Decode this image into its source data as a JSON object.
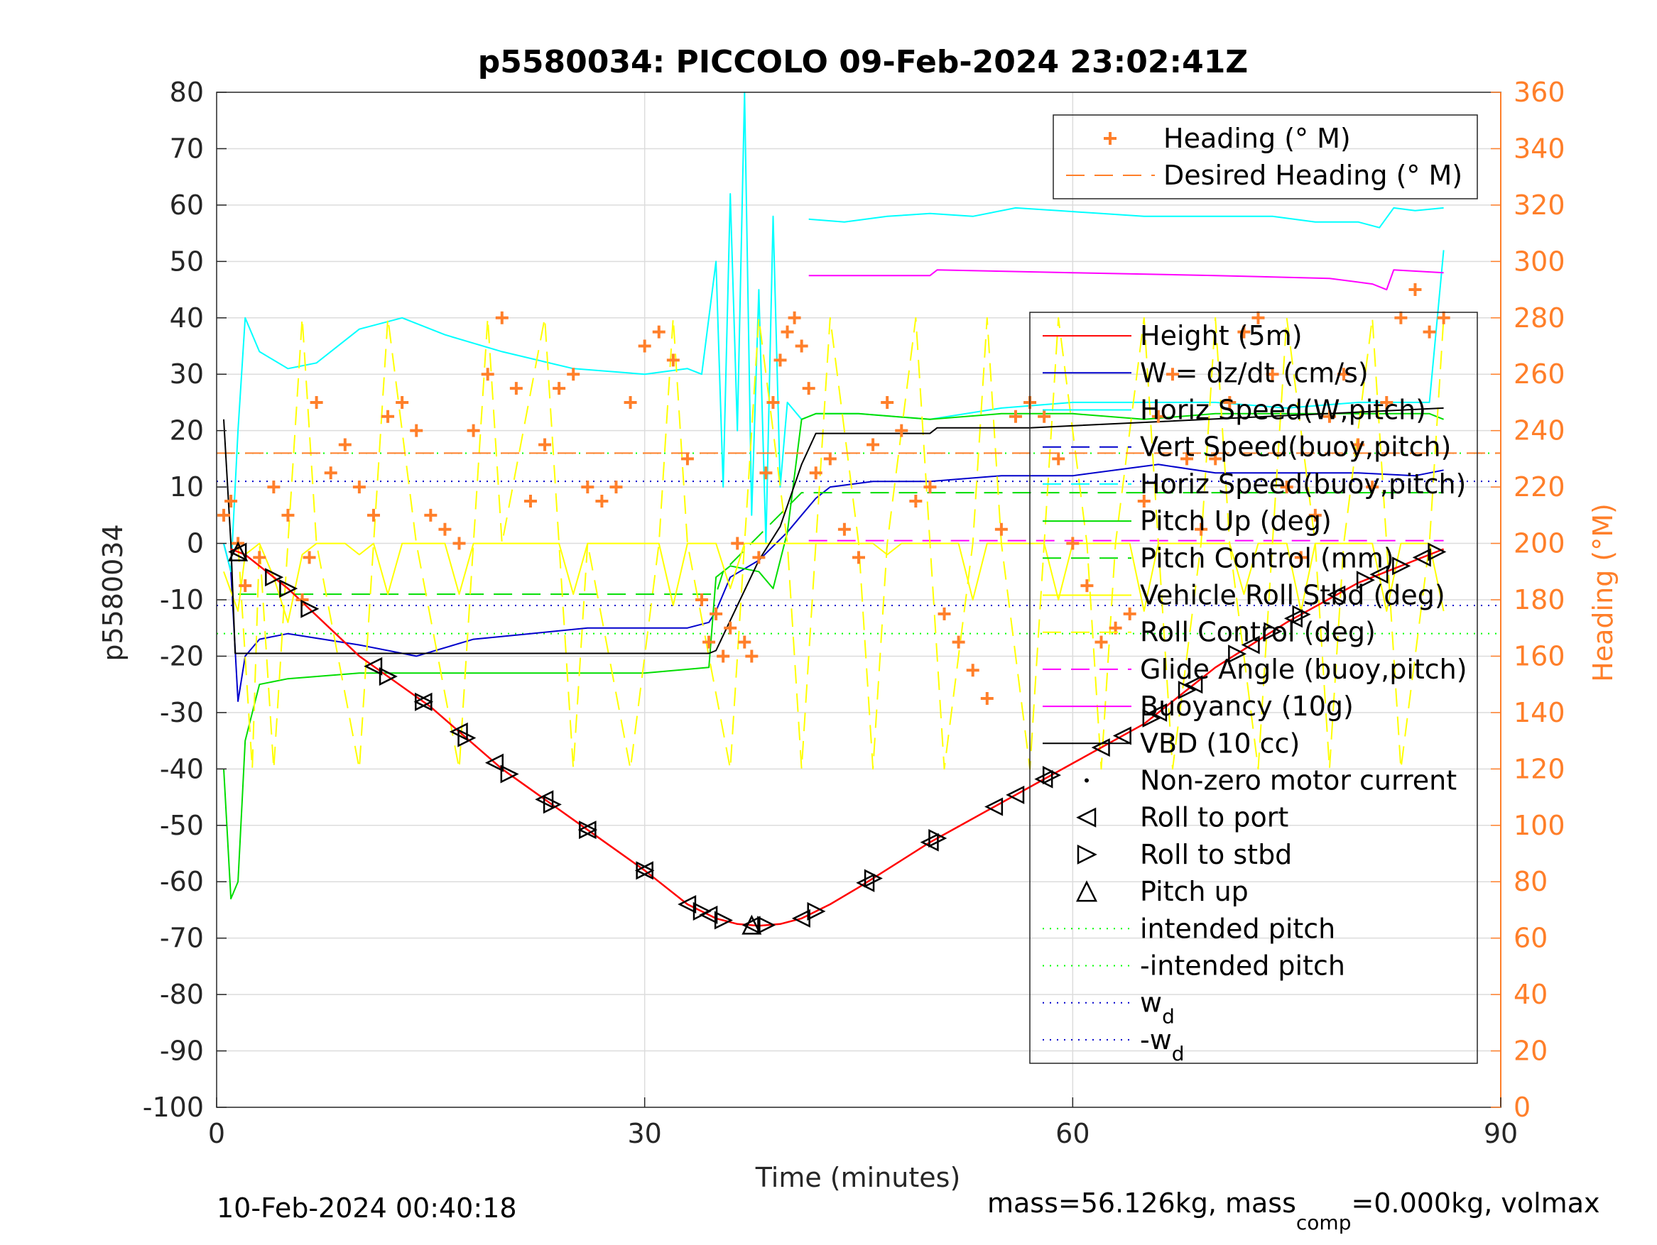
{
  "chart_data": {
    "type": "line",
    "title": "p5580034: PICCOLO 09-Feb-2024 23:02:41Z",
    "xlabel": "Time (minutes)",
    "ylabel": "p5580034",
    "y2label": "Heading (°M)",
    "xlim": [
      0,
      90
    ],
    "ylim": [
      -100,
      80
    ],
    "y2lim": [
      0,
      360
    ],
    "xticks": [
      0,
      30,
      60,
      90
    ],
    "yticks": [
      -100,
      -90,
      -80,
      -70,
      -60,
      -50,
      -40,
      -30,
      -20,
      -10,
      0,
      10,
      20,
      30,
      40,
      50,
      60,
      70,
      80
    ],
    "y2ticks": [
      0,
      20,
      40,
      60,
      80,
      100,
      120,
      140,
      160,
      180,
      200,
      220,
      240,
      260,
      280,
      300,
      320,
      340,
      360
    ],
    "grid": true,
    "footer_left": "10-Feb-2024 00:40:18",
    "footer_right_parts": [
      "mass=56.126kg, mass",
      "comp",
      "=0.000kg, volmax"
    ],
    "legend_heading": [
      {
        "label": "Heading (° M)",
        "style": "plus",
        "color": "#ff7f2a"
      },
      {
        "label": "Desired Heading (° M)",
        "style": "dash",
        "color": "#ff7f2a"
      }
    ],
    "legend_main": [
      {
        "label": "Height (5m)",
        "style": "solid",
        "color": "#ff0000"
      },
      {
        "label": "W = dz/dt (cm/s)",
        "style": "solid",
        "color": "#0000cc"
      },
      {
        "label": "Horiz Speed(W,pitch)",
        "style": "solid",
        "color": "#00ffff"
      },
      {
        "label": "Vert Speed(buoy,pitch)",
        "style": "dash",
        "color": "#0000cc"
      },
      {
        "label": "Horiz Speed(buoy,pitch)",
        "style": "dash",
        "color": "#00ffff"
      },
      {
        "label": "Pitch Up (deg)",
        "style": "solid",
        "color": "#00dd00"
      },
      {
        "label": "Pitch Control (mm)",
        "style": "dash",
        "color": "#00dd00"
      },
      {
        "label": "Vehicle Roll Stbd (deg)",
        "style": "solid",
        "color": "#ffff00"
      },
      {
        "label": "Roll Control (deg)",
        "style": "dash",
        "color": "#ffff00"
      },
      {
        "label": "Glide Angle (buoy,pitch)",
        "style": "dash",
        "color": "#ff00ff"
      },
      {
        "label": "Buoyancy (10g)",
        "style": "solid",
        "color": "#ff00ff"
      },
      {
        "label": "VBD (10 cc)",
        "style": "solid",
        "color": "#000000"
      },
      {
        "label": "Non-zero motor current",
        "style": "dot",
        "color": "#000000"
      },
      {
        "label": "Roll to port",
        "style": "tri-left",
        "color": "#000000"
      },
      {
        "label": "Roll to stbd",
        "style": "tri-right",
        "color": "#000000"
      },
      {
        "label": "Pitch up",
        "style": "tri-up",
        "color": "#000000"
      },
      {
        "label": "intended pitch",
        "style": "dotted",
        "color": "#00ff00"
      },
      {
        "label": "-intended pitch",
        "style": "dotted",
        "color": "#00ff00"
      },
      {
        "label": "w",
        "sub": "d",
        "style": "dotted",
        "color": "#0000cc"
      },
      {
        "label": "-w",
        "sub": "d",
        "style": "dotted",
        "color": "#0000cc"
      }
    ],
    "series": [
      {
        "name": "Height (5m)",
        "axis": "left",
        "color": "#ff0000",
        "x": [
          1.0,
          2.0,
          5.0,
          10.0,
          15.0,
          20.0,
          25.0,
          30.0,
          33.0,
          35.0,
          36.5,
          38.0,
          39.5,
          41.0,
          43.0,
          45.0,
          50.0,
          55.0,
          60.0,
          65.0,
          70.0,
          75.0,
          80.0,
          85.0,
          86.0
        ],
        "y": [
          -1,
          -2,
          -8,
          -20,
          -29,
          -40,
          -49,
          -58,
          -64,
          -66.5,
          -67.5,
          -67.8,
          -67.5,
          -66.5,
          -64,
          -61,
          -53,
          -46,
          -39,
          -32,
          -22,
          -14,
          -7,
          -2,
          -1
        ]
      },
      {
        "name": "VBD (10 cc)",
        "axis": "left",
        "color": "#000000",
        "x": [
          0.5,
          1.0,
          1.3,
          1.8,
          34.5,
          35.0,
          38.0,
          39.5,
          41.0,
          42.0,
          50.0,
          50.5,
          57.0,
          86.0
        ],
        "y": [
          22,
          0,
          -19.5,
          -19.5,
          -19.5,
          -19,
          -3,
          3,
          14,
          19.5,
          19.5,
          20.5,
          20.5,
          24
        ]
      },
      {
        "name": "W = dz/dt (cm/s)",
        "axis": "left",
        "color": "#0000cc",
        "x": [
          0.5,
          1.0,
          1.5,
          2.0,
          3.0,
          5.0,
          10.0,
          14.0,
          18.0,
          22.0,
          26.0,
          30.0,
          33.0,
          34.5,
          35.0,
          36.0,
          38.0,
          40.0,
          41.0,
          42.0,
          43.0,
          46.0,
          50.0,
          55.0,
          60.0,
          66.0,
          70.0,
          75.0,
          80.0,
          84.0,
          86.0
        ],
        "y": [
          0,
          -5,
          -28,
          -20,
          -17,
          -16,
          -18,
          -20,
          -17,
          -16,
          -15,
          -15,
          -15,
          -14,
          -12,
          -6,
          -3,
          2,
          5,
          8,
          10,
          11,
          11,
          12,
          12,
          14,
          12.5,
          12.5,
          12.5,
          12,
          13
        ]
      },
      {
        "name": "Horiz Speed(W,pitch)",
        "axis": "left",
        "color": "#00ffff",
        "x": [
          0.5,
          1.0,
          1.5,
          2.0,
          3.0,
          5.0,
          7.0,
          10.0,
          13.0,
          16.0,
          20.0,
          25.0,
          30.0,
          33.0,
          34.0,
          35.0,
          35.5,
          36.0,
          36.5,
          37.0,
          37.5,
          38.0,
          38.5,
          39.0,
          39.5,
          40.0,
          41.0,
          42.0,
          45.0,
          50.0,
          55.0,
          60.0,
          65.0,
          70.0,
          75.0,
          80.0,
          85.0,
          86.0
        ],
        "y": [
          0,
          -5,
          20,
          40,
          34,
          31,
          32,
          38,
          40,
          37,
          34,
          31,
          30,
          31,
          30,
          50,
          10,
          62,
          20,
          80,
          5,
          45,
          0,
          58,
          10,
          25,
          22,
          23,
          23,
          22,
          24,
          25,
          25,
          25,
          24,
          25,
          25,
          52
        ]
      },
      {
        "name": "Horiz Speed(buoy,pitch)",
        "axis": "left",
        "color": "#00ffff",
        "x": [
          41.5,
          44.0,
          47.0,
          50.0,
          53.0,
          56.0,
          59.0,
          62.0,
          65.0,
          68.0,
          71.0,
          74.0,
          77.0,
          80.0,
          81.5,
          82.5,
          84.0,
          86.0
        ],
        "y": [
          57.5,
          57,
          58,
          58.5,
          58,
          59.5,
          59,
          58.5,
          58,
          58,
          58,
          58,
          57,
          57,
          56,
          59.5,
          59,
          59.5
        ]
      },
      {
        "name": "Pitch Up (deg)",
        "axis": "left",
        "color": "#00dd00",
        "x": [
          0.5,
          1.0,
          1.5,
          1.8,
          2.0,
          3.0,
          5.0,
          10.0,
          15.0,
          20.0,
          25.0,
          30.0,
          34.5,
          35.0,
          36.0,
          38.0,
          39.0,
          40.0,
          41.0,
          42.0,
          45.0,
          50.0,
          55.0,
          60.0,
          65.0,
          70.0,
          75.0,
          80.0,
          85.0,
          86.0
        ],
        "y": [
          -40,
          -63,
          -60,
          -45,
          -35,
          -25,
          -24,
          -23,
          -23,
          -23,
          -23,
          -23,
          -22,
          -6,
          -4,
          -5,
          -8,
          2,
          22,
          23,
          23,
          22,
          23,
          23,
          22,
          23,
          23,
          23,
          23,
          22
        ]
      },
      {
        "name": "Buoyancy (10g)",
        "axis": "left",
        "color": "#ff00ff",
        "x": [
          41.5,
          50.0,
          50.5,
          60.0,
          70.0,
          78.0,
          81.0,
          82.0,
          82.5,
          86.0
        ],
        "y": [
          47.5,
          47.5,
          48.5,
          48,
          47.5,
          47,
          46,
          45,
          48.5,
          48
        ]
      },
      {
        "name": "Glide Angle (buoy,pitch)",
        "axis": "left",
        "color": "#ff00ff",
        "dash": true,
        "x": [
          41.5,
          86.0
        ],
        "y": [
          0.5,
          0.5
        ]
      },
      {
        "name": "Pitch Control (mm)",
        "axis": "left",
        "color": "#00dd00",
        "dash": true,
        "x": [
          1.5,
          35.0,
          35.5,
          41.0,
          86.0
        ],
        "y": [
          -9,
          -9,
          -5,
          9,
          9
        ]
      },
      {
        "name": "Vehicle Roll Stbd (deg)",
        "axis": "left",
        "color": "#ffff00",
        "x": [
          0.5,
          1.5,
          2.0,
          3.0,
          4.0,
          5.0,
          6.0,
          7.0,
          8.0,
          9.0,
          10.0,
          11.0,
          12.0,
          13.0,
          14.0,
          15.0,
          16.0,
          17.0,
          18.0,
          19.0,
          20.0,
          21.0,
          22.0,
          23.0,
          24.0,
          25.0,
          26.0,
          27.0,
          28.0,
          29.0,
          30.0,
          31.0,
          32.0,
          33.0,
          34.0,
          35.0,
          36.0,
          37.0,
          38.0,
          39.0,
          40.0,
          41.0,
          42.0,
          43.0,
          44.0,
          45.0,
          46.0,
          47.0,
          48.0,
          49.0,
          50.0,
          51.0,
          52.0,
          53.0,
          54.0,
          55.0,
          56.0,
          57.0,
          58.0,
          59.0,
          60.0,
          61.0,
          62.0,
          63.0,
          64.0,
          65.0,
          66.0,
          67.0,
          68.0,
          69.0,
          70.0,
          71.0,
          72.0,
          73.0,
          74.0,
          75.0,
          76.0,
          77.0,
          78.0,
          79.0,
          80.0,
          81.0,
          82.0,
          83.0,
          84.0,
          85.0,
          86.0
        ],
        "y": [
          -5,
          -12,
          -2,
          0,
          -6,
          -14,
          -2,
          0,
          0,
          0,
          -2,
          0,
          -9,
          0,
          0,
          0,
          0,
          -9,
          0,
          0,
          0,
          0,
          0,
          0,
          0,
          -9,
          0,
          0,
          0,
          0,
          0,
          0,
          -11,
          0,
          0,
          0,
          -8,
          0,
          0,
          0,
          0,
          0,
          0,
          0,
          0,
          0,
          0,
          -2,
          0,
          0,
          0,
          0,
          0,
          -10,
          0,
          0,
          0,
          0,
          0,
          -10,
          0,
          0,
          0,
          0,
          0,
          -12,
          0,
          0,
          0,
          0,
          0,
          0,
          -9,
          0,
          0,
          0,
          -12,
          0,
          0,
          0,
          0,
          0,
          -12,
          0,
          0,
          0,
          -12
        ]
      },
      {
        "name": "Roll Control (deg)",
        "axis": "left",
        "color": "#ffff00",
        "dash": true,
        "x": [
          1.5,
          2.5,
          3.0,
          4.0,
          5.0,
          6.0,
          7.0,
          10.0,
          11.0,
          12.0,
          14.0,
          17.0,
          18.0,
          19.0,
          20.0,
          23.0,
          24.0,
          25.0,
          26.0,
          29.0,
          31.0,
          32.0,
          33.0,
          36.0,
          37.0,
          38.0,
          40.0,
          41.0,
          42.0,
          43.0,
          45.0,
          46.0,
          47.0,
          49.0,
          50.0,
          51.0,
          53.0,
          54.0,
          55.0,
          57.0,
          58.0,
          59.0,
          61.0,
          62.0,
          63.0,
          65.0,
          66.0,
          67.0,
          69.0,
          70.0,
          71.0,
          73.0,
          74.0,
          75.0,
          77.0,
          78.0,
          79.0,
          81.0,
          82.0,
          83.0,
          85.0,
          86.0
        ],
        "y": [
          0,
          -40,
          0,
          -40,
          0,
          40,
          0,
          -40,
          0,
          40,
          0,
          -40,
          0,
          40,
          0,
          40,
          0,
          -40,
          0,
          -40,
          0,
          40,
          0,
          -40,
          0,
          40,
          0,
          -40,
          0,
          40,
          0,
          -40,
          0,
          40,
          0,
          -40,
          0,
          40,
          0,
          -40,
          0,
          40,
          0,
          -40,
          0,
          40,
          0,
          -40,
          0,
          40,
          0,
          -40,
          0,
          40,
          0,
          -40,
          0,
          40,
          0,
          -40,
          0,
          40
        ]
      },
      {
        "name": "Heading (° M)",
        "axis": "right",
        "color": "#ff7f2a",
        "marker": "plus",
        "x": [
          0.5,
          1.0,
          1.5,
          2.0,
          3.0,
          4.0,
          5.0,
          6.0,
          6.5,
          7.0,
          8.0,
          9.0,
          10.0,
          11.0,
          12.0,
          13.0,
          14.0,
          15.0,
          16.0,
          17.0,
          18.0,
          19.0,
          20.0,
          21.0,
          22.0,
          23.0,
          24.0,
          25.0,
          26.0,
          27.0,
          28.0,
          29.0,
          30.0,
          31.0,
          32.0,
          33.0,
          34.0,
          34.5,
          35.0,
          35.5,
          36.0,
          36.5,
          37.0,
          37.5,
          38.0,
          38.5,
          39.0,
          39.5,
          40.0,
          40.5,
          41.0,
          41.5,
          42.0,
          43.0,
          44.0,
          45.0,
          46.0,
          47.0,
          48.0,
          49.0,
          50.0,
          51.0,
          52.0,
          53.0,
          54.0,
          55.0,
          56.0,
          57.0,
          58.0,
          59.0,
          60.0,
          61.0,
          62.0,
          63.0,
          64.0,
          65.0,
          66.0,
          67.0,
          68.0,
          69.0,
          70.0,
          71.0,
          72.0,
          73.0,
          74.0,
          75.0,
          76.0,
          77.0,
          78.0,
          79.0,
          80.0,
          81.0,
          82.0,
          83.0,
          84.0,
          85.0,
          86.0
        ],
        "y": [
          210,
          215,
          200,
          185,
          195,
          220,
          210,
          180,
          195,
          250,
          225,
          235,
          220,
          210,
          245,
          250,
          240,
          210,
          205,
          200,
          240,
          260,
          280,
          255,
          215,
          235,
          255,
          260,
          220,
          215,
          220,
          250,
          270,
          275,
          265,
          230,
          180,
          165,
          175,
          160,
          170,
          200,
          165,
          160,
          195,
          225,
          250,
          265,
          275,
          280,
          270,
          255,
          225,
          230,
          205,
          195,
          235,
          250,
          240,
          215,
          220,
          175,
          165,
          155,
          145,
          205,
          245,
          250,
          245,
          230,
          200,
          185,
          165,
          170,
          175,
          215,
          245,
          260,
          230,
          205,
          230,
          250,
          275,
          280,
          260,
          220,
          195,
          210,
          245,
          260,
          235,
          220,
          250,
          280,
          290,
          275,
          280
        ]
      },
      {
        "name": "Desired Heading (° M)",
        "axis": "right",
        "color": "#ff7f2a",
        "dash": true,
        "x": [
          0.0,
          90.0
        ],
        "y": [
          232,
          232
        ]
      }
    ],
    "reference_lines": [
      {
        "name": "intended pitch",
        "y": 16,
        "color": "#00ff00"
      },
      {
        "name": "-intended pitch",
        "y": -16,
        "color": "#00ff00"
      },
      {
        "name": "w_d",
        "y": 11,
        "color": "#0000cc"
      },
      {
        "name": "-w_d",
        "y": -11,
        "color": "#0000cc"
      }
    ],
    "events": {
      "roll_to_port_x": [
        1.5,
        11.0,
        14.5,
        17.0,
        19.5,
        23.0,
        26.0,
        30.0,
        33.0,
        34.5,
        37.5,
        41.0,
        45.5,
        50.0,
        54.5,
        56.0,
        58.0,
        62.0,
        63.5,
        66.0,
        68.5,
        72.5,
        75.5,
        78.5,
        81.5,
        84.5
      ],
      "roll_to_stbd_x": [
        4.0,
        5.0,
        6.5,
        12.0,
        14.5,
        17.5,
        20.5,
        23.5,
        26.0,
        30.0,
        34.0,
        35.5,
        38.5,
        42.0,
        46.0,
        50.5,
        58.5,
        65.5,
        68.0,
        71.5,
        74.0,
        76.0,
        80.5,
        83.0,
        85.5
      ],
      "pitch_up_x": [
        1.5,
        37.5
      ]
    }
  }
}
